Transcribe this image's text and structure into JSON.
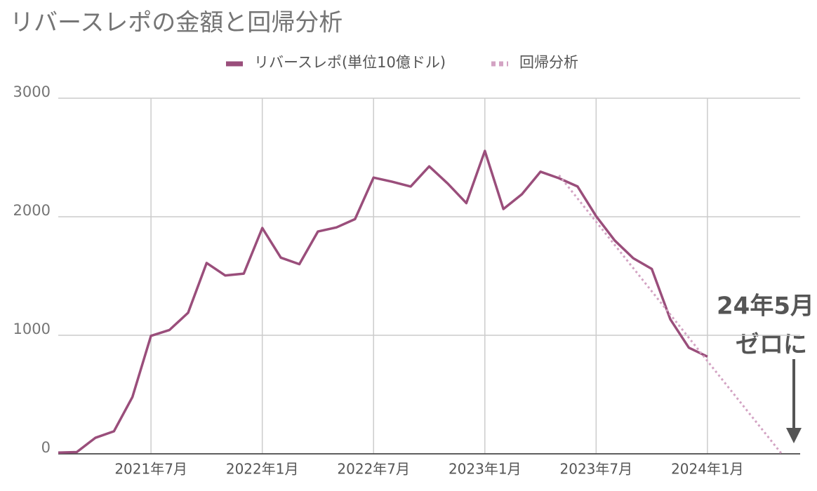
{
  "chart_data": {
    "type": "line",
    "title": "リバースレポの金額と回帰分析",
    "x": [
      "2021-02",
      "2021-03",
      "2021-04",
      "2021-05",
      "2021-06",
      "2021-07",
      "2021-08",
      "2021-09",
      "2021-10",
      "2021-11",
      "2021-12",
      "2022-01",
      "2022-02",
      "2022-03",
      "2022-04",
      "2022-05",
      "2022-06",
      "2022-07",
      "2022-08",
      "2022-09",
      "2022-10",
      "2022-11",
      "2022-12",
      "2023-01",
      "2023-02",
      "2023-03",
      "2023-04",
      "2023-05",
      "2023-06",
      "2023-07",
      "2023-08",
      "2023-09",
      "2023-10",
      "2023-11",
      "2023-12",
      "2024-01",
      "2024-02",
      "2024-03",
      "2024-04",
      "2024-05"
    ],
    "series": [
      {
        "name": "リバースレポ(単位10億ドル)",
        "color": "#9a4e7b",
        "style": "solid",
        "values": [
          10,
          15,
          135,
          190,
          480,
          995,
          1045,
          1190,
          1610,
          1505,
          1520,
          1905,
          1655,
          1600,
          1875,
          1910,
          1980,
          2330,
          2295,
          2255,
          2425,
          2280,
          2115,
          2555,
          2065,
          2190,
          2380,
          2325,
          2255,
          2005,
          1800,
          1650,
          1560,
          1135,
          895,
          820,
          null,
          null,
          null,
          null
        ]
      },
      {
        "name": "回帰分析",
        "color": "#d3a3c3",
        "style": "dotted",
        "values": [
          null,
          null,
          null,
          null,
          null,
          null,
          null,
          null,
          null,
          null,
          null,
          null,
          null,
          null,
          null,
          null,
          null,
          null,
          null,
          null,
          null,
          null,
          null,
          null,
          null,
          null,
          null,
          2350,
          2154,
          1958,
          1762,
          1567,
          1371,
          1175,
          979,
          783,
          587,
          392,
          196,
          0
        ]
      }
    ],
    "xlim": [
      "2021-02",
      "2024-06"
    ],
    "xticks": [
      {
        "value": "2021-07",
        "label": "2021年7月"
      },
      {
        "value": "2022-01",
        "label": "2022年1月"
      },
      {
        "value": "2022-07",
        "label": "2022年7月"
      },
      {
        "value": "2023-01",
        "label": "2023年1月"
      },
      {
        "value": "2023-07",
        "label": "2023年7月"
      },
      {
        "value": "2024-01",
        "label": "2024年1月"
      }
    ],
    "ylim": [
      0,
      3000
    ],
    "yticks": [
      0,
      1000,
      2000,
      3000
    ],
    "grid": true,
    "legend": "top",
    "annotations": [
      "24年5月",
      "ゼロに"
    ]
  }
}
